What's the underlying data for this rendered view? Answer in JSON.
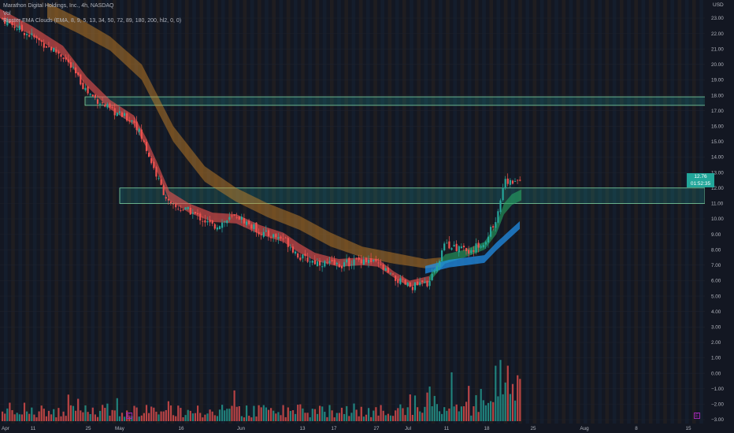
{
  "legend": {
    "title": "Marathon Digital Holdings, Inc., 4h, NASDAQ",
    "vol": "Vol",
    "indicator": "Ripster EMA Clouds (EMA, 8, 9, 5, 13, 34, 50, 72, 89, 180, 200, hl2, 0, 0)"
  },
  "price_tag": {
    "price": "12.76",
    "countdown": "01:52:35"
  },
  "markers": {
    "earnings_label": "E",
    "event_label": "E"
  },
  "colors": {
    "background": "#131722",
    "up": "#26a69a",
    "down": "#ef5350",
    "zone_fill": "rgba(38,166,154,0.22)",
    "zone_border": "#7fd8a6",
    "cloud_orange": "rgba(214,140,40,0.45)",
    "cloud_red": "rgba(239,83,80,0.6)",
    "cloud_green": "rgba(38,166,100,0.6)",
    "cloud_blue": "rgba(33,150,243,0.7)"
  },
  "chart_data": {
    "type": "candlestick",
    "title": "Marathon Digital Holdings, Inc., 4h, NASDAQ",
    "currency": "USD",
    "price_axis": {
      "ticks": [
        23,
        22,
        21,
        20,
        19,
        18,
        17,
        16,
        15,
        14,
        13,
        12,
        11,
        10,
        9,
        8,
        7,
        6,
        5,
        4,
        3,
        2,
        1,
        0,
        -1,
        -2,
        -3
      ],
      "labels": [
        "23.00",
        "22.00",
        "21.00",
        "20.00",
        "19.00",
        "18.00",
        "17.00",
        "16.00",
        "15.00",
        "14.00",
        "13.00",
        "12.00",
        "11.00",
        "10.00",
        "9.00",
        "8.00",
        "7.00",
        "6.00",
        "5.00",
        "4.00",
        "3.00",
        "2.00",
        "1.00",
        "0.00",
        "−1.00",
        "−2.00",
        "−3.00"
      ],
      "range": [
        -3.5,
        23.5
      ]
    },
    "time_axis": {
      "labels": [
        "Apr",
        "11",
        "25",
        "May",
        "16",
        "Jun",
        "13",
        "17",
        "27",
        "Jul",
        "11",
        "18",
        "25",
        "Aug",
        "8",
        "15"
      ]
    },
    "zones": [
      {
        "low": 17.35,
        "high": 17.9
      },
      {
        "low": 11.0,
        "high": 12.0
      }
    ],
    "close_path": [
      [
        0,
        23.0
      ],
      [
        40,
        21.8
      ],
      [
        80,
        20.5
      ],
      [
        110,
        18.2
      ],
      [
        140,
        17.0
      ],
      [
        170,
        16.3
      ],
      [
        185,
        14.5
      ],
      [
        200,
        12.5
      ],
      [
        215,
        10.8
      ],
      [
        240,
        10.5
      ],
      [
        270,
        9.5
      ],
      [
        300,
        10.2
      ],
      [
        330,
        9.1
      ],
      [
        360,
        8.7
      ],
      [
        380,
        7.5
      ],
      [
        400,
        7.2
      ],
      [
        430,
        7.0
      ],
      [
        460,
        7.4
      ],
      [
        480,
        7.0
      ],
      [
        500,
        6.1
      ],
      [
        520,
        5.6
      ],
      [
        545,
        5.9
      ],
      [
        565,
        8.4
      ],
      [
        590,
        7.9
      ],
      [
        615,
        8.4
      ],
      [
        630,
        10.2
      ],
      [
        640,
        12.6
      ],
      [
        650,
        12.2
      ],
      [
        662,
        12.76
      ]
    ],
    "ema_fast_cloud_top": [
      [
        0,
        23.6
      ],
      [
        40,
        22.5
      ],
      [
        80,
        21.2
      ],
      [
        110,
        19.2
      ],
      [
        140,
        17.7
      ],
      [
        170,
        16.7
      ],
      [
        185,
        15.3
      ],
      [
        200,
        13.6
      ],
      [
        215,
        11.8
      ],
      [
        240,
        11.0
      ],
      [
        270,
        10.4
      ],
      [
        300,
        10.3
      ],
      [
        330,
        9.6
      ],
      [
        360,
        9.1
      ],
      [
        380,
        8.4
      ],
      [
        400,
        7.8
      ],
      [
        430,
        7.4
      ],
      [
        460,
        7.5
      ],
      [
        480,
        7.4
      ],
      [
        500,
        6.6
      ],
      [
        520,
        6.0
      ],
      [
        545,
        6.3
      ],
      [
        565,
        7.7
      ],
      [
        590,
        8.0
      ],
      [
        615,
        8.5
      ],
      [
        630,
        9.6
      ],
      [
        640,
        11.0
      ],
      [
        650,
        11.6
      ],
      [
        662,
        11.9
      ]
    ],
    "ema_fast_cloud_bottom": [
      [
        0,
        23.0
      ],
      [
        40,
        21.9
      ],
      [
        80,
        20.6
      ],
      [
        110,
        18.6
      ],
      [
        140,
        17.1
      ],
      [
        170,
        16.1
      ],
      [
        185,
        14.7
      ],
      [
        200,
        13.0
      ],
      [
        215,
        11.2
      ],
      [
        240,
        10.4
      ],
      [
        270,
        9.8
      ],
      [
        300,
        9.7
      ],
      [
        330,
        9.0
      ],
      [
        360,
        8.5
      ],
      [
        380,
        7.8
      ],
      [
        400,
        7.3
      ],
      [
        430,
        6.9
      ],
      [
        460,
        7.0
      ],
      [
        480,
        6.9
      ],
      [
        500,
        6.2
      ],
      [
        520,
        5.6
      ],
      [
        545,
        5.9
      ],
      [
        565,
        7.1
      ],
      [
        590,
        7.5
      ],
      [
        615,
        8.0
      ],
      [
        630,
        9.0
      ],
      [
        640,
        10.3
      ],
      [
        650,
        10.9
      ],
      [
        662,
        11.2
      ]
    ],
    "ema_slow_cloud_top": [
      [
        60,
        24.0
      ],
      [
        100,
        23.0
      ],
      [
        140,
        21.8
      ],
      [
        180,
        20.0
      ],
      [
        220,
        16.0
      ],
      [
        260,
        13.4
      ],
      [
        300,
        12.0
      ],
      [
        340,
        11.0
      ],
      [
        380,
        10.2
      ],
      [
        420,
        9.1
      ],
      [
        460,
        8.2
      ],
      [
        500,
        7.8
      ],
      [
        540,
        7.4
      ],
      [
        560,
        7.5
      ]
    ],
    "ema_slow_cloud_bottom": [
      [
        60,
        23.0
      ],
      [
        100,
        22.0
      ],
      [
        140,
        20.9
      ],
      [
        180,
        19.0
      ],
      [
        220,
        15.0
      ],
      [
        260,
        12.4
      ],
      [
        300,
        11.1
      ],
      [
        340,
        10.1
      ],
      [
        380,
        9.3
      ],
      [
        420,
        8.2
      ],
      [
        460,
        7.5
      ],
      [
        500,
        7.1
      ],
      [
        540,
        6.8
      ],
      [
        560,
        6.9
      ]
    ],
    "ema_long_cloud": [
      [
        540,
        6.7
      ],
      [
        570,
        7.1
      ],
      [
        600,
        7.3
      ],
      [
        615,
        7.4
      ],
      [
        630,
        8.2
      ],
      [
        645,
        8.9
      ],
      [
        660,
        9.6
      ]
    ],
    "volume_range": [
      0,
      11
    ],
    "grid": true
  }
}
